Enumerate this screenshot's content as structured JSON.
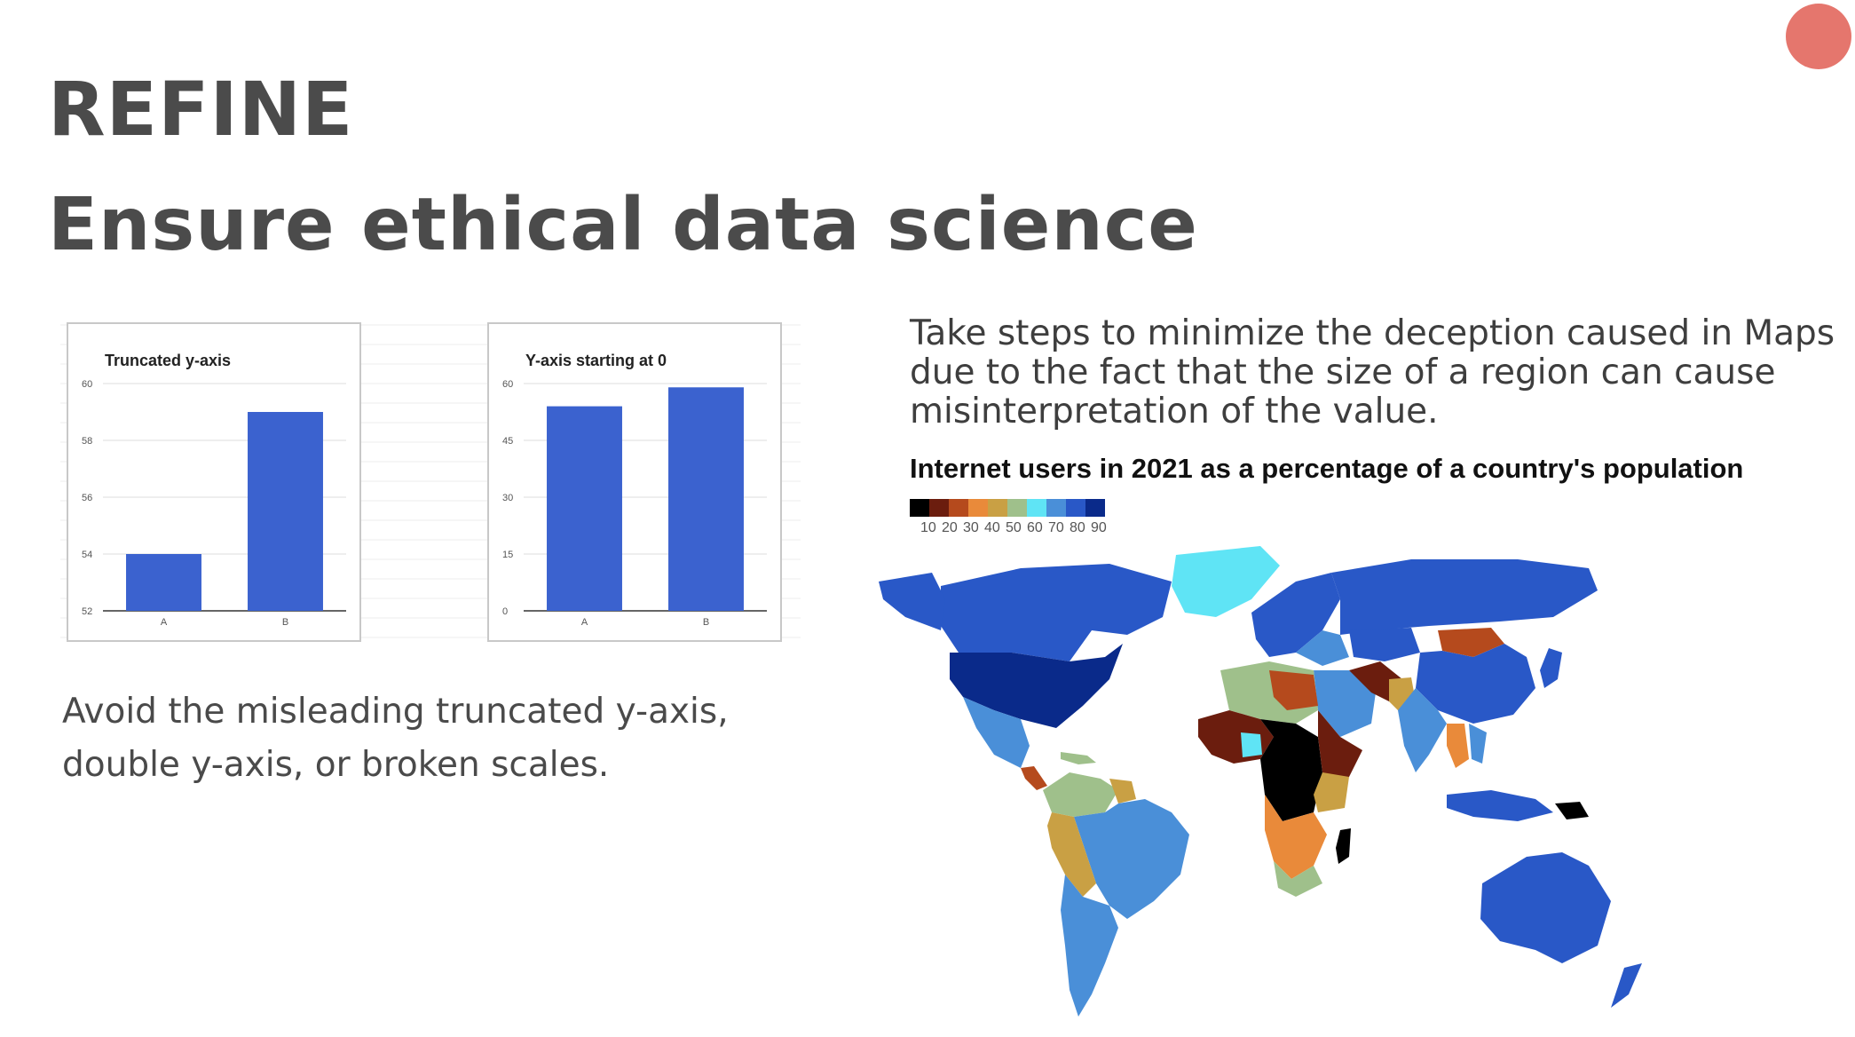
{
  "slide": {
    "title": "REFINE",
    "subtitle": "Ensure ethical data science",
    "accent_color": "#e5766d"
  },
  "left_section": {
    "caption": "Avoid the misleading truncated y-axis, double y-axis, or broken scales."
  },
  "chart_data": [
    {
      "type": "bar",
      "title": "Truncated y-axis",
      "categories": [
        "A",
        "B"
      ],
      "values": [
        54,
        59
      ],
      "ylim": [
        52,
        60
      ],
      "yticks": [
        "52",
        "54",
        "56",
        "58",
        "60"
      ],
      "grid": true,
      "bar_color": "#3b62cf"
    },
    {
      "type": "bar",
      "title": "Y-axis starting at 0",
      "categories": [
        "A",
        "B"
      ],
      "values": [
        54,
        59
      ],
      "ylim": [
        0,
        60
      ],
      "yticks": [
        "0",
        "15",
        "30",
        "45",
        "60"
      ],
      "grid": true,
      "bar_color": "#3b62cf"
    }
  ],
  "right_section": {
    "description": "Take steps to minimize the deception caused in Maps due to the fact that the size of a region can cause misinterpretation of the value.",
    "map_title": "Internet users in 2021 as a percentage of a country's population",
    "legend": {
      "colors": [
        "#000000",
        "#6b1d0e",
        "#b54a1d",
        "#e98a3a",
        "#c9a044",
        "#9fc08b",
        "#5fe4f5",
        "#4a8fd8",
        "#2958c7",
        "#0a2a8a"
      ],
      "ticks": [
        "10",
        "20",
        "30",
        "40",
        "50",
        "60",
        "70",
        "80",
        "90"
      ]
    }
  }
}
